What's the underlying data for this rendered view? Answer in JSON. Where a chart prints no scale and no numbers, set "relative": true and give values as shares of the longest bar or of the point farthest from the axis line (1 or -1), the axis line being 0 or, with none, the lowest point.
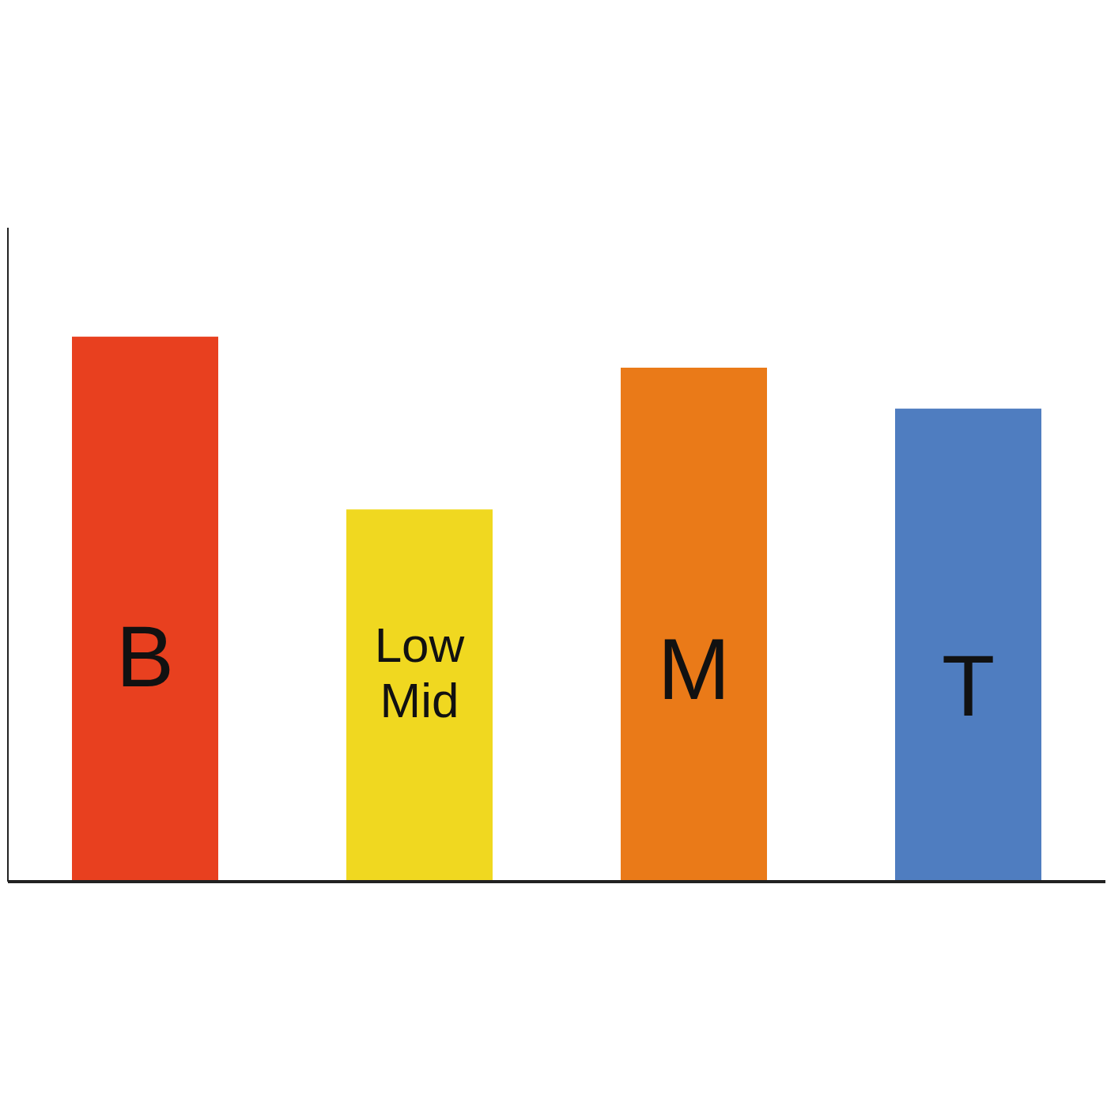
{
  "chart_data": {
    "type": "bar",
    "relative": true,
    "categories": [
      "B",
      "Low Mid",
      "M",
      "T"
    ],
    "values": [
      1,
      0.683,
      0.943,
      0.868
    ],
    "colors": [
      "#e8401f",
      "#f0d820",
      "#ea7a18",
      "#4f7dc0"
    ],
    "grid": false,
    "legend": false
  }
}
